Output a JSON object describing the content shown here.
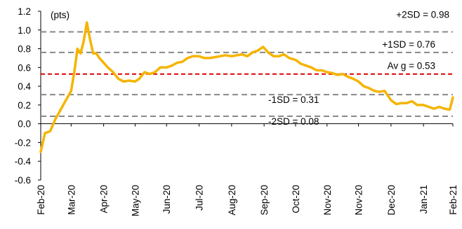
{
  "chart_data": {
    "type": "line",
    "title": "",
    "xlabel": "",
    "ylabel": "(pts)",
    "ylim": [
      -0.6,
      1.2
    ],
    "yticks": [
      -0.6,
      -0.4,
      -0.2,
      0.0,
      0.2,
      0.4,
      0.6,
      0.8,
      1.0,
      1.2
    ],
    "ytick_labels": [
      "-0.6",
      "-0.4",
      "-0.2",
      "0.0",
      "0.2",
      "0.4",
      "0.6",
      "0.8",
      "1.0",
      "1.2"
    ],
    "xlim": [
      "2020-02-01",
      "2021-02-28"
    ],
    "xticks": [
      "2020-02-01",
      "2020-03-01",
      "2020-04-01",
      "2020-05-01",
      "2020-05-31",
      "2020-07-01",
      "2020-08-01",
      "2020-09-01",
      "2020-10-01",
      "2020-10-31",
      "2020-11-30",
      "2020-12-31",
      "2021-01-31",
      "2021-02-28"
    ],
    "xtick_labels": [
      "Feb-20",
      "Mar-20",
      "Apr-20",
      "May-20",
      "Jun-20",
      "Jul-20",
      "Aug-20",
      "Sep-20",
      "Oct-20",
      "Nov-20",
      "Nov-20",
      "Dec-20",
      "Jan-21",
      "Feb-21"
    ],
    "grid": false,
    "colors": {
      "series": "#f5b400",
      "reference": "#888888",
      "average": "#e00000"
    },
    "reference_lines": [
      {
        "label": "+2SD = 0.98",
        "value": 0.98,
        "color": "#888888",
        "style": "dashed"
      },
      {
        "label": "+1SD = 0.76",
        "value": 0.76,
        "color": "#888888",
        "style": "dashed"
      },
      {
        "label": "Av g = 0.53",
        "value": 0.53,
        "color": "#e00000",
        "style": "dashed"
      },
      {
        "label": "-1SD = 0.31",
        "value": 0.31,
        "color": "#888888",
        "style": "dashed"
      },
      {
        "label": "-2SD = 0.08",
        "value": 0.08,
        "color": "#888888",
        "style": "dashed"
      }
    ],
    "series": [
      {
        "x": [
          "2020-02-01",
          "2020-02-05",
          "2020-02-10",
          "2020-02-15",
          "2020-02-20",
          "2020-02-25",
          "2020-03-01",
          "2020-03-04",
          "2020-03-07",
          "2020-03-10",
          "2020-03-13",
          "2020-03-16",
          "2020-03-19",
          "2020-03-22",
          "2020-03-25",
          "2020-03-28",
          "2020-04-01",
          "2020-04-05",
          "2020-04-10",
          "2020-04-15",
          "2020-04-20",
          "2020-04-25",
          "2020-05-01",
          "2020-05-05",
          "2020-05-10",
          "2020-05-15",
          "2020-05-20",
          "2020-05-25",
          "2020-05-31",
          "2020-06-05",
          "2020-06-10",
          "2020-06-15",
          "2020-06-20",
          "2020-06-25",
          "2020-07-01",
          "2020-07-06",
          "2020-07-11",
          "2020-07-16",
          "2020-07-21",
          "2020-07-26",
          "2020-08-01",
          "2020-08-06",
          "2020-08-11",
          "2020-08-16",
          "2020-08-21",
          "2020-08-26",
          "2020-08-31",
          "2020-09-05",
          "2020-09-10",
          "2020-09-15",
          "2020-09-20",
          "2020-09-25",
          "2020-10-01",
          "2020-10-06",
          "2020-10-11",
          "2020-10-16",
          "2020-10-21",
          "2020-10-26",
          "2020-10-31",
          "2020-11-05",
          "2020-11-10",
          "2020-11-15",
          "2020-11-20",
          "2020-11-25",
          "2020-11-30",
          "2020-12-05",
          "2020-12-10",
          "2020-12-15",
          "2020-12-20",
          "2020-12-25",
          "2020-12-31",
          "2021-01-05",
          "2021-01-10",
          "2021-01-15",
          "2021-01-20",
          "2021-01-25",
          "2021-01-31",
          "2021-02-05",
          "2021-02-10",
          "2021-02-15",
          "2021-02-20",
          "2021-02-25",
          "2021-02-28"
        ],
        "y": [
          -0.3,
          -0.1,
          -0.08,
          0.05,
          0.15,
          0.25,
          0.35,
          0.55,
          0.8,
          0.75,
          0.88,
          1.08,
          0.9,
          0.75,
          0.75,
          0.7,
          0.65,
          0.6,
          0.55,
          0.48,
          0.45,
          0.46,
          0.45,
          0.48,
          0.55,
          0.53,
          0.55,
          0.6,
          0.6,
          0.62,
          0.65,
          0.66,
          0.7,
          0.72,
          0.72,
          0.7,
          0.7,
          0.71,
          0.72,
          0.73,
          0.72,
          0.73,
          0.74,
          0.72,
          0.76,
          0.78,
          0.82,
          0.76,
          0.72,
          0.72,
          0.74,
          0.7,
          0.68,
          0.64,
          0.62,
          0.6,
          0.57,
          0.57,
          0.55,
          0.54,
          0.52,
          0.53,
          0.5,
          0.48,
          0.45,
          0.4,
          0.38,
          0.35,
          0.34,
          0.35,
          0.25,
          0.21,
          0.22,
          0.22,
          0.24,
          0.2,
          0.2,
          0.18,
          0.16,
          0.18,
          0.16,
          0.15,
          0.28
        ]
      }
    ]
  }
}
